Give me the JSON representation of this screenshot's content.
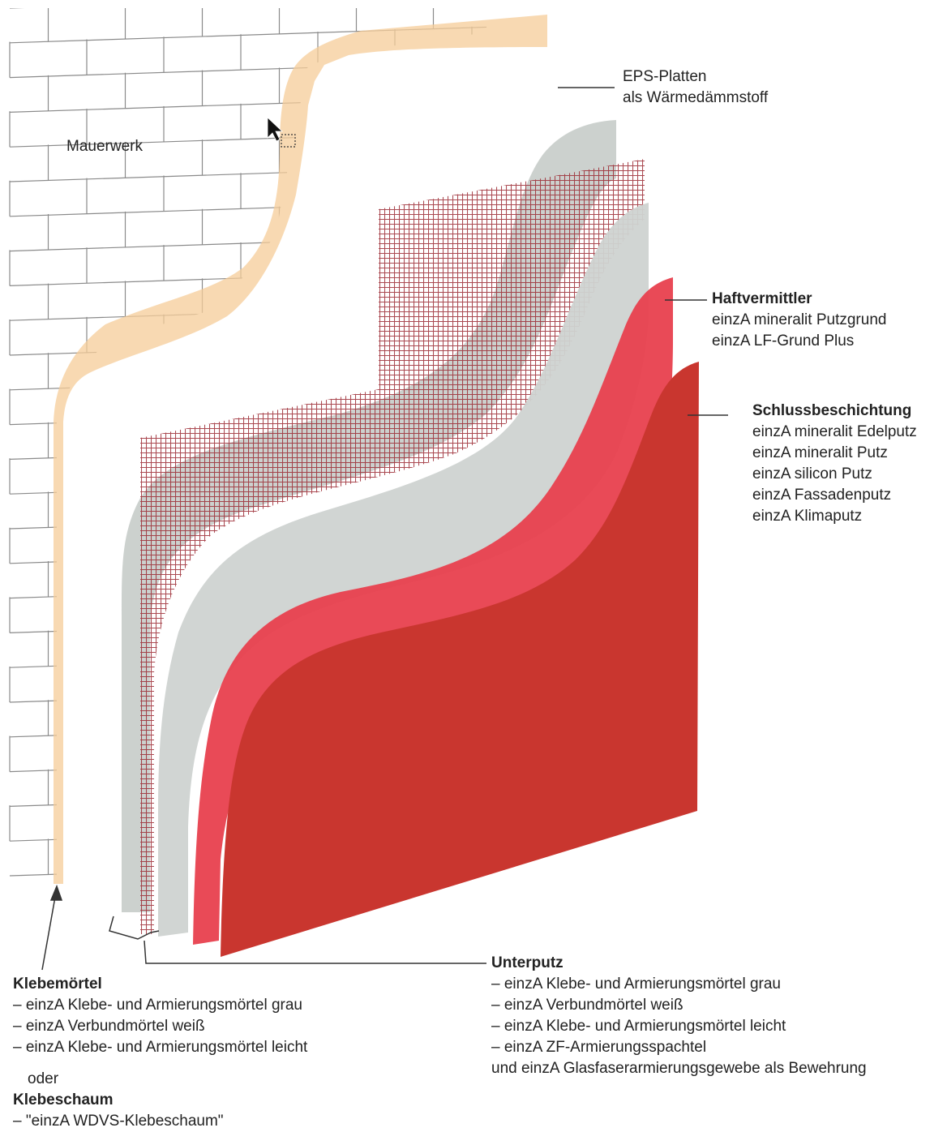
{
  "labels": {
    "mauerwerk": "Mauerwerk",
    "eps": {
      "line1": "EPS-Platten",
      "line2": "als Wärmedämmstoff"
    },
    "haftvermittler": {
      "title": "Haftvermittler",
      "items": [
        "einzA mineralit Putzgrund",
        "einzA LF-Grund Plus"
      ]
    },
    "schlussbeschichtung": {
      "title": "Schlussbeschichtung",
      "items": [
        "einzA mineralit Edelputz",
        "einzA mineralit Putz",
        "einzA silicon Putz",
        "einzA Fassadenputz",
        "einzA Klimaputz"
      ]
    },
    "unterputz": {
      "title": "Unterputz",
      "items": [
        "– einzA Klebe- und Armierungsmörtel grau",
        "– einzA Verbundmörtel weiß",
        "– einzA Klebe- und Armierungsmörtel leicht",
        "– einzA ZF-Armierungsspachtel",
        "und einzA Glasfaserarmierungsgewebe als Bewehrung"
      ]
    },
    "klebemoertel": {
      "title": "Klebemörtel",
      "items": [
        "– einzA Klebe- und Armierungsmörtel grau",
        "– einzA Verbundmörtel weiß",
        "– einzA Klebe- und Armierungsmörtel leicht"
      ]
    },
    "oder": "oder",
    "klebeschaum": {
      "title": "Klebeschaum",
      "items": [
        "– \"einzA WDVS-Klebeschaum\""
      ]
    }
  },
  "colors": {
    "brick_lines": "#8a8a8a",
    "adhesive": "#f6cc98",
    "eps": "#c7ccc9",
    "mesh": "#9c2a33",
    "base_coat": "#cfd3d1",
    "primer": "#e8404e",
    "finish": "#c9362f",
    "leader": "#333333"
  },
  "icons": [
    "cursor-arrow-icon"
  ]
}
